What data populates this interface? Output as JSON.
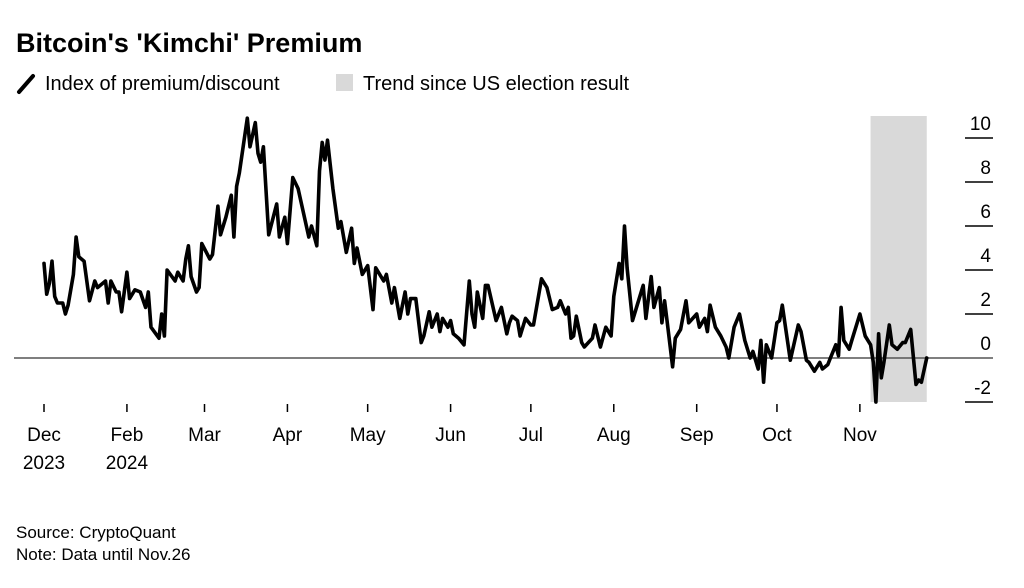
{
  "chart_data": {
    "type": "line",
    "title": "Bitcoin's 'Kimchi' Premium",
    "legend": [
      {
        "label": "Index of premium/discount",
        "icon": "line-slash-icon",
        "color": "#000000"
      },
      {
        "label": "Trend since US election result",
        "icon": "shaded-square-icon",
        "color": "#d9d9d9"
      }
    ],
    "legend_placement": "top-left",
    "xlabel": "",
    "ylabel": "",
    "ylim": [
      -2,
      11
    ],
    "y_ticks": [
      10,
      8,
      6,
      4,
      2,
      0,
      -2
    ],
    "y_tick_labels": [
      "10",
      "8",
      "6",
      "4",
      "2",
      "0",
      "-2"
    ],
    "y_axis_side": "right",
    "zero_line": true,
    "grid": false,
    "x_ticks": [
      {
        "date": "2024-01-01",
        "label": "Dec",
        "sublabel": "2023"
      },
      {
        "date": "2024-02-01",
        "label": "Feb",
        "sublabel": "2024"
      },
      {
        "date": "2024-03-01",
        "label": "Mar"
      },
      {
        "date": "2024-04-01",
        "label": "Apr"
      },
      {
        "date": "2024-05-01",
        "label": "May"
      },
      {
        "date": "2024-06-01",
        "label": "Jun"
      },
      {
        "date": "2024-07-01",
        "label": "Jul"
      },
      {
        "date": "2024-08-01",
        "label": "Aug"
      },
      {
        "date": "2024-09-01",
        "label": "Sep"
      },
      {
        "date": "2024-10-01",
        "label": "Oct"
      },
      {
        "date": "2024-11-01",
        "label": "Nov"
      }
    ],
    "shaded_region": {
      "start": "2024-11-05",
      "end": "2024-11-26",
      "color": "#d9d9d9"
    },
    "line_color": "#000000",
    "series": [
      {
        "name": "Index of premium/discount",
        "points": [
          [
            "2024-01-01",
            4.3
          ],
          [
            "2024-01-02",
            2.9
          ],
          [
            "2024-01-03",
            3.4
          ],
          [
            "2024-01-04",
            4.4
          ],
          [
            "2024-01-05",
            2.8
          ],
          [
            "2024-01-06",
            2.5
          ],
          [
            "2024-01-08",
            2.5
          ],
          [
            "2024-01-09",
            2.0
          ],
          [
            "2024-01-10",
            2.4
          ],
          [
            "2024-01-12",
            3.8
          ],
          [
            "2024-01-13",
            5.5
          ],
          [
            "2024-01-14",
            4.6
          ],
          [
            "2024-01-16",
            4.4
          ],
          [
            "2024-01-18",
            2.6
          ],
          [
            "2024-01-20",
            3.5
          ],
          [
            "2024-01-21",
            3.2
          ],
          [
            "2024-01-24",
            3.5
          ],
          [
            "2024-01-25",
            2.5
          ],
          [
            "2024-01-26",
            3.5
          ],
          [
            "2024-01-28",
            3.0
          ],
          [
            "2024-01-29",
            3.0
          ],
          [
            "2024-01-30",
            2.1
          ],
          [
            "2024-02-01",
            3.9
          ],
          [
            "2024-02-02",
            2.7
          ],
          [
            "2024-02-04",
            3.1
          ],
          [
            "2024-02-06",
            3.0
          ],
          [
            "2024-02-08",
            2.3
          ],
          [
            "2024-02-09",
            3.0
          ],
          [
            "2024-02-10",
            1.4
          ],
          [
            "2024-02-13",
            0.9
          ],
          [
            "2024-02-14",
            2.0
          ],
          [
            "2024-02-15",
            1.0
          ],
          [
            "2024-02-16",
            4.0
          ],
          [
            "2024-02-19",
            3.5
          ],
          [
            "2024-02-20",
            3.9
          ],
          [
            "2024-02-22",
            3.5
          ],
          [
            "2024-02-23",
            4.5
          ],
          [
            "2024-02-24",
            5.1
          ],
          [
            "2024-02-25",
            3.7
          ],
          [
            "2024-02-27",
            3.0
          ],
          [
            "2024-02-28",
            3.2
          ],
          [
            "2024-02-29",
            5.2
          ],
          [
            "2024-03-03",
            4.5
          ],
          [
            "2024-03-04",
            4.7
          ],
          [
            "2024-03-06",
            6.9
          ],
          [
            "2024-03-07",
            5.6
          ],
          [
            "2024-03-09",
            6.4
          ],
          [
            "2024-03-11",
            7.4
          ],
          [
            "2024-03-12",
            5.5
          ],
          [
            "2024-03-13",
            7.8
          ],
          [
            "2024-03-14",
            8.4
          ],
          [
            "2024-03-17",
            10.9
          ],
          [
            "2024-03-18",
            9.6
          ],
          [
            "2024-03-20",
            10.7
          ],
          [
            "2024-03-21",
            9.3
          ],
          [
            "2024-03-22",
            8.9
          ],
          [
            "2024-03-23",
            9.6
          ],
          [
            "2024-03-25",
            5.6
          ],
          [
            "2024-03-28",
            7.0
          ],
          [
            "2024-03-29",
            5.5
          ],
          [
            "2024-03-31",
            6.4
          ],
          [
            "2024-04-01",
            5.2
          ],
          [
            "2024-04-03",
            8.2
          ],
          [
            "2024-04-05",
            7.7
          ],
          [
            "2024-04-09",
            5.5
          ],
          [
            "2024-04-10",
            6.0
          ],
          [
            "2024-04-12",
            5.1
          ],
          [
            "2024-04-13",
            8.5
          ],
          [
            "2024-04-14",
            9.8
          ],
          [
            "2024-04-15",
            9.0
          ],
          [
            "2024-04-16",
            9.9
          ],
          [
            "2024-04-18",
            7.7
          ],
          [
            "2024-04-20",
            5.9
          ],
          [
            "2024-04-21",
            6.2
          ],
          [
            "2024-04-23",
            4.8
          ],
          [
            "2024-04-25",
            5.9
          ],
          [
            "2024-04-26",
            4.3
          ],
          [
            "2024-04-27",
            5.0
          ],
          [
            "2024-04-29",
            3.8
          ],
          [
            "2024-05-01",
            4.2
          ],
          [
            "2024-05-03",
            2.2
          ],
          [
            "2024-05-04",
            4.1
          ],
          [
            "2024-05-07",
            3.5
          ],
          [
            "2024-05-08",
            3.8
          ],
          [
            "2024-05-10",
            2.5
          ],
          [
            "2024-05-11",
            3.2
          ],
          [
            "2024-05-13",
            1.8
          ],
          [
            "2024-05-15",
            3.0
          ],
          [
            "2024-05-16",
            2.0
          ],
          [
            "2024-05-17",
            2.7
          ],
          [
            "2024-05-19",
            2.7
          ],
          [
            "2024-05-21",
            0.7
          ],
          [
            "2024-05-22",
            1.0
          ],
          [
            "2024-05-24",
            2.1
          ],
          [
            "2024-05-25",
            1.4
          ],
          [
            "2024-05-27",
            2.0
          ],
          [
            "2024-05-28",
            1.2
          ],
          [
            "2024-05-29",
            1.8
          ],
          [
            "2024-05-31",
            1.4
          ],
          [
            "2024-06-01",
            1.7
          ],
          [
            "2024-06-02",
            1.1
          ],
          [
            "2024-06-04",
            0.9
          ],
          [
            "2024-06-06",
            0.6
          ],
          [
            "2024-06-08",
            3.5
          ],
          [
            "2024-06-09",
            2.0
          ],
          [
            "2024-06-10",
            1.4
          ],
          [
            "2024-06-11",
            3.0
          ],
          [
            "2024-06-13",
            1.8
          ],
          [
            "2024-06-14",
            3.3
          ],
          [
            "2024-06-15",
            3.3
          ],
          [
            "2024-06-18",
            1.7
          ],
          [
            "2024-06-20",
            2.3
          ],
          [
            "2024-06-22",
            1.1
          ],
          [
            "2024-06-23",
            1.6
          ],
          [
            "2024-06-24",
            1.9
          ],
          [
            "2024-06-26",
            1.7
          ],
          [
            "2024-06-27",
            1.0
          ],
          [
            "2024-06-29",
            1.8
          ],
          [
            "2024-07-01",
            1.5
          ],
          [
            "2024-07-02",
            1.5
          ],
          [
            "2024-07-05",
            3.6
          ],
          [
            "2024-07-07",
            3.2
          ],
          [
            "2024-07-09",
            2.2
          ],
          [
            "2024-07-11",
            2.3
          ],
          [
            "2024-07-12",
            2.6
          ],
          [
            "2024-07-14",
            2.0
          ],
          [
            "2024-07-15",
            2.3
          ],
          [
            "2024-07-16",
            0.9
          ],
          [
            "2024-07-17",
            1.0
          ],
          [
            "2024-07-18",
            1.9
          ],
          [
            "2024-07-20",
            0.7
          ],
          [
            "2024-07-21",
            0.5
          ],
          [
            "2024-07-24",
            0.9
          ],
          [
            "2024-07-25",
            1.5
          ],
          [
            "2024-07-27",
            0.5
          ],
          [
            "2024-07-29",
            1.4
          ],
          [
            "2024-07-31",
            1.0
          ],
          [
            "2024-08-01",
            2.8
          ],
          [
            "2024-08-03",
            4.3
          ],
          [
            "2024-08-04",
            3.6
          ],
          [
            "2024-08-05",
            6.0
          ],
          [
            "2024-08-06",
            4.1
          ],
          [
            "2024-08-08",
            1.7
          ],
          [
            "2024-08-12",
            3.3
          ],
          [
            "2024-08-13",
            1.8
          ],
          [
            "2024-08-15",
            3.7
          ],
          [
            "2024-08-16",
            2.3
          ],
          [
            "2024-08-18",
            3.2
          ],
          [
            "2024-08-19",
            1.6
          ],
          [
            "2024-08-20",
            2.6
          ],
          [
            "2024-08-21",
            1.6
          ],
          [
            "2024-08-23",
            -0.4
          ],
          [
            "2024-08-24",
            0.9
          ],
          [
            "2024-08-26",
            1.3
          ],
          [
            "2024-08-28",
            2.6
          ],
          [
            "2024-08-29",
            1.6
          ],
          [
            "2024-09-01",
            2.0
          ],
          [
            "2024-09-02",
            1.4
          ],
          [
            "2024-09-04",
            1.8
          ],
          [
            "2024-09-05",
            1.2
          ],
          [
            "2024-09-06",
            2.4
          ],
          [
            "2024-09-08",
            1.4
          ],
          [
            "2024-09-10",
            1.0
          ],
          [
            "2024-09-12",
            0.5
          ],
          [
            "2024-09-13",
            0.0
          ],
          [
            "2024-09-15",
            1.4
          ],
          [
            "2024-09-17",
            2.0
          ],
          [
            "2024-09-19",
            0.8
          ],
          [
            "2024-09-21",
            0.0
          ],
          [
            "2024-09-22",
            0.3
          ],
          [
            "2024-09-24",
            -0.5
          ],
          [
            "2024-09-25",
            0.8
          ],
          [
            "2024-09-26",
            -1.1
          ],
          [
            "2024-09-27",
            0.6
          ],
          [
            "2024-09-29",
            0.0
          ],
          [
            "2024-10-01",
            1.6
          ],
          [
            "2024-10-02",
            1.7
          ],
          [
            "2024-10-03",
            2.4
          ],
          [
            "2024-10-06",
            -0.1
          ],
          [
            "2024-10-09",
            1.5
          ],
          [
            "2024-10-10",
            1.2
          ],
          [
            "2024-10-12",
            -0.1
          ],
          [
            "2024-10-13",
            -0.2
          ],
          [
            "2024-10-15",
            -0.6
          ],
          [
            "2024-10-17",
            -0.2
          ],
          [
            "2024-10-18",
            -0.5
          ],
          [
            "2024-10-20",
            -0.3
          ],
          [
            "2024-10-21",
            0.0
          ],
          [
            "2024-10-23",
            0.6
          ],
          [
            "2024-10-24",
            0.1
          ],
          [
            "2024-10-25",
            2.3
          ],
          [
            "2024-10-26",
            0.8
          ],
          [
            "2024-10-28",
            0.4
          ],
          [
            "2024-10-29",
            0.8
          ],
          [
            "2024-11-01",
            2.0
          ],
          [
            "2024-11-03",
            1.0
          ],
          [
            "2024-11-05",
            0.6
          ],
          [
            "2024-11-06",
            -0.2
          ],
          [
            "2024-11-07",
            -2.0
          ],
          [
            "2024-11-08",
            1.1
          ],
          [
            "2024-11-09",
            -0.9
          ],
          [
            "2024-11-10",
            -0.2
          ],
          [
            "2024-11-12",
            1.5
          ],
          [
            "2024-11-13",
            0.6
          ],
          [
            "2024-11-15",
            0.4
          ],
          [
            "2024-11-17",
            0.7
          ],
          [
            "2024-11-18",
            0.7
          ],
          [
            "2024-11-20",
            1.3
          ],
          [
            "2024-11-22",
            -1.2
          ],
          [
            "2024-11-23",
            -1.0
          ],
          [
            "2024-11-24",
            -1.1
          ],
          [
            "2024-11-26",
            0.0
          ]
        ]
      }
    ]
  },
  "footer": {
    "source": "Source: CryptoQuant",
    "note": "Note: Data until Nov.26"
  }
}
